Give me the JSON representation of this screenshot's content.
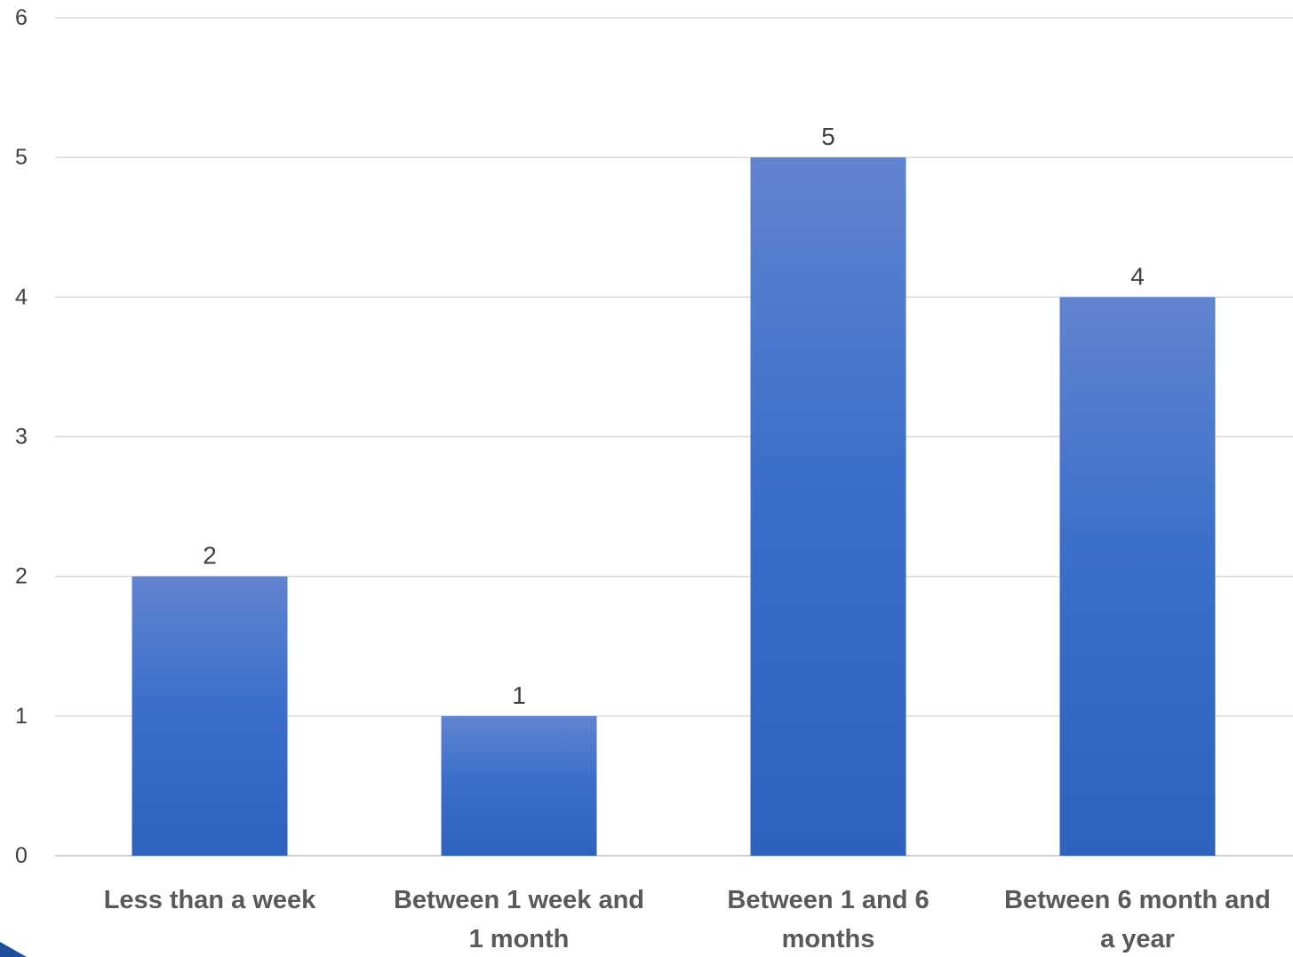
{
  "chart_data": {
    "type": "bar",
    "title": "",
    "xlabel": "",
    "ylabel": "",
    "categories": [
      [
        "Less than a week"
      ],
      [
        "Between 1 week and",
        "1 month"
      ],
      [
        "Between 1 and 6",
        "months"
      ],
      [
        "Between 6 month and",
        "a year"
      ]
    ],
    "values": [
      2,
      1,
      5,
      4
    ],
    "ylim": [
      0,
      6
    ],
    "yticks": [
      0,
      1,
      2,
      3,
      4,
      5,
      6
    ],
    "grid": true,
    "legend": "none",
    "colors": {
      "bar_top": "#6184CF",
      "bar_bottom": "#2E62BE",
      "gridline": "#D9D9D9",
      "corner_accent": "#1F4E9A"
    }
  }
}
